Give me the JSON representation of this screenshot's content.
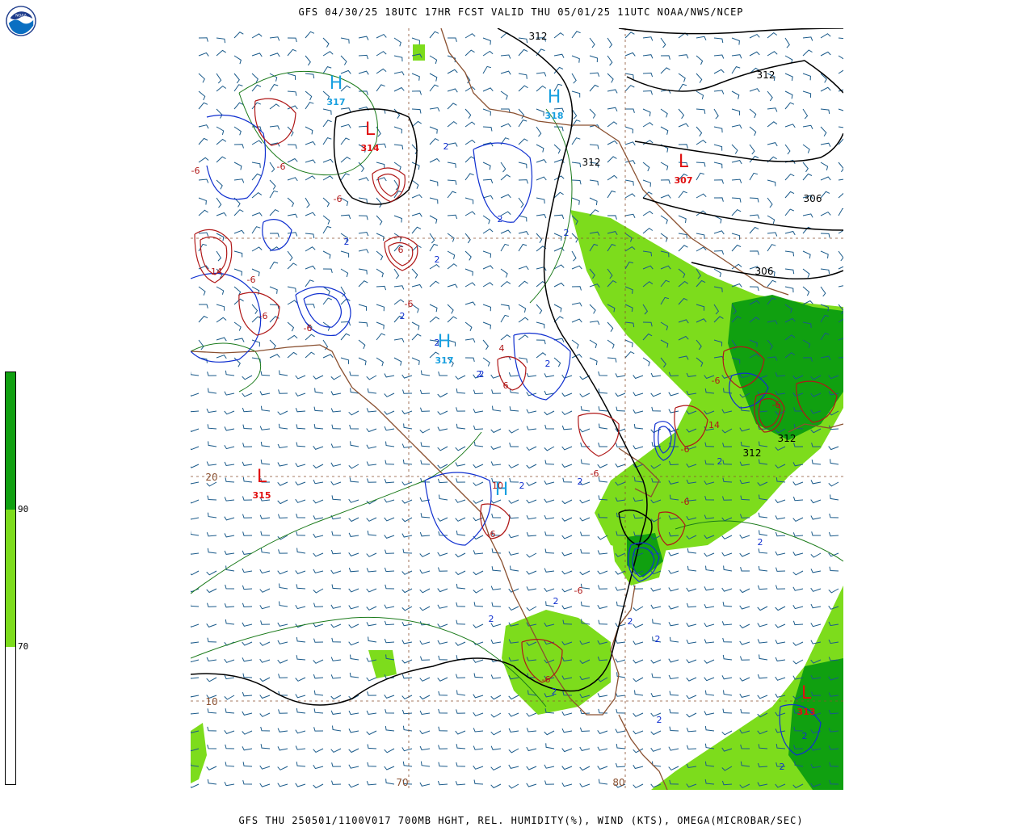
{
  "header": {
    "title": "GFS 04/30/25 18UTC 17HR FCST VALID THU 05/01/25 11UTC NOAA/NWS/NCEP"
  },
  "footer": {
    "caption": "GFS THU 250501/1100V017 700MB HGHT, REL. HUMIDITY(%), WIND (KTS), OMEGA(MICROBAR/SEC)"
  },
  "logo": {
    "name": "noaa-logo",
    "text": "NOAA"
  },
  "colorbar": {
    "colors": {
      "high": "#10a010",
      "mid": "#7ddc1c",
      "low": "#ffffff"
    },
    "levels": [
      {
        "label": "90",
        "value": 90
      },
      {
        "label": "70",
        "value": 70
      }
    ]
  },
  "colors": {
    "height_contour": "#000000",
    "omega_up": "#1030d0",
    "omega_down": "#b01818",
    "rh_contour": "#1a7a1a",
    "wind_barb": "#1a5a8a",
    "coastline": "#8a5030",
    "rh_fill_mid": "#7ddc1c",
    "rh_fill_high": "#10a010",
    "high_center": "#18a0e0",
    "low_center": "#e01010"
  },
  "map": {
    "gridlines": [
      {
        "label": "20",
        "axis": "lat"
      },
      {
        "label": "10",
        "axis": "lat"
      },
      {
        "label": "70",
        "axis": "lon"
      },
      {
        "label": "80",
        "axis": "lon"
      }
    ],
    "pressure_centers": [
      {
        "type": "H",
        "value": "317"
      },
      {
        "type": "H",
        "value": "318"
      },
      {
        "type": "L",
        "value": "314"
      },
      {
        "type": "L",
        "value": "307"
      },
      {
        "type": "H",
        "value": "317"
      },
      {
        "type": "L",
        "value": "315"
      },
      {
        "type": "H",
        "value": ""
      },
      {
        "type": "L",
        "value": "313"
      }
    ],
    "height_labels": [
      "312",
      "312",
      "312",
      "306",
      "306",
      "312",
      "312"
    ],
    "omega_labels": [
      "-6",
      "-6",
      "-6",
      "14",
      "-6",
      "-6",
      "-6",
      "6",
      "-6",
      "6",
      "4",
      "-6",
      "-6",
      "-6",
      "14",
      "-6",
      "-6",
      "-6",
      "-6",
      "10",
      "-6"
    ],
    "omega_up_labels": [
      "2",
      "2",
      "2",
      "2",
      "2",
      "2",
      "2",
      "2",
      "2",
      "2",
      "2",
      "2",
      "2",
      "2",
      "2",
      "2",
      "2",
      "2",
      "2",
      "2",
      "2",
      "2"
    ]
  }
}
